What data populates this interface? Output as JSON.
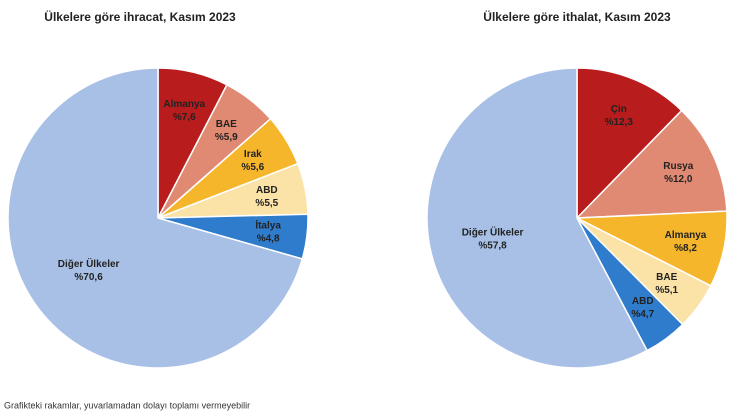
{
  "chart_data": [
    {
      "type": "pie",
      "title": "Ülkelere göre ihracat, Kasım 2023",
      "categories": [
        "Almanya",
        "BAE",
        "Irak",
        "ABD",
        "İtalya",
        "Diğer Ülkeler"
      ],
      "values": [
        7.6,
        5.9,
        5.6,
        5.5,
        4.8,
        70.6
      ],
      "value_labels": [
        "%7,6",
        "%5,9",
        "%5,6",
        "%5,5",
        "%4,8",
        "%70,6"
      ],
      "colors": [
        "#b81c1c",
        "#e08a74",
        "#f5b62c",
        "#fbe2a6",
        "#2f7bcc",
        "#a8c0e6"
      ]
    },
    {
      "type": "pie",
      "title": "Ülkelere göre ithalat, Kasım 2023",
      "categories": [
        "Çin",
        "Rusya",
        "Almanya",
        "BAE",
        "ABD",
        "Diğer Ülkeler"
      ],
      "values": [
        12.3,
        12.0,
        8.2,
        5.1,
        4.7,
        57.8
      ],
      "value_labels": [
        "%12,3",
        "%12,0",
        "%8,2",
        "%5,1",
        "%4,7",
        "%57,8"
      ],
      "colors": [
        "#b81c1c",
        "#e08a74",
        "#f5b62c",
        "#fbe2a6",
        "#2f7bcc",
        "#a8c0e6"
      ]
    }
  ],
  "footnote": "Grafikteki rakamlar, yuvarlamadan dolayı toplamı vermeyebilir"
}
